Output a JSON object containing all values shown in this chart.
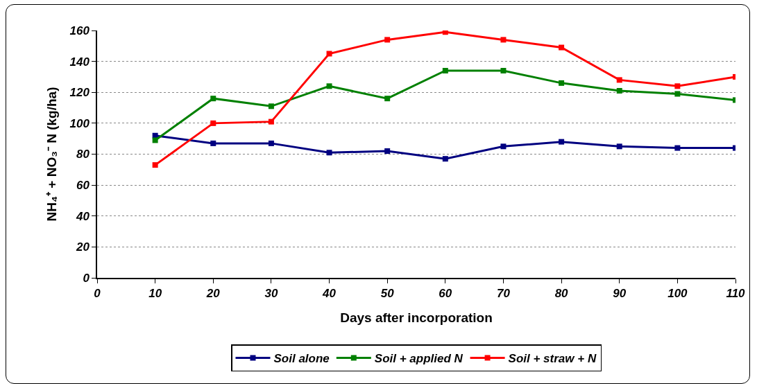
{
  "chart_data": {
    "type": "line",
    "xlabel": "Days after incorporation",
    "ylabel": "NH₄⁺ + NO₃⁻ N (kg/ha)",
    "x": [
      10,
      20,
      30,
      40,
      50,
      60,
      70,
      80,
      90,
      100,
      110
    ],
    "series": [
      {
        "name": "Soil alone",
        "color": "#000080",
        "values": [
          92,
          87,
          87,
          81,
          82,
          77,
          85,
          88,
          85,
          84,
          84
        ]
      },
      {
        "name": "Soil + applied N",
        "color": "#008000",
        "values": [
          89,
          116,
          111,
          124,
          116,
          134,
          134,
          126,
          121,
          119,
          115
        ]
      },
      {
        "name": "Soil + straw + N",
        "color": "#ff0000",
        "values": [
          73,
          100,
          101,
          145,
          154,
          159,
          154,
          149,
          128,
          124,
          130
        ]
      }
    ],
    "xlim": [
      0,
      110
    ],
    "xticks": [
      0,
      10,
      20,
      30,
      40,
      50,
      60,
      70,
      80,
      90,
      100,
      110
    ],
    "ylim": [
      0,
      160
    ],
    "yticks": [
      0,
      20,
      40,
      60,
      80,
      100,
      120,
      140,
      160
    ],
    "grid": "y",
    "legend": "bottom",
    "marker": "square",
    "line_style": "solid"
  }
}
